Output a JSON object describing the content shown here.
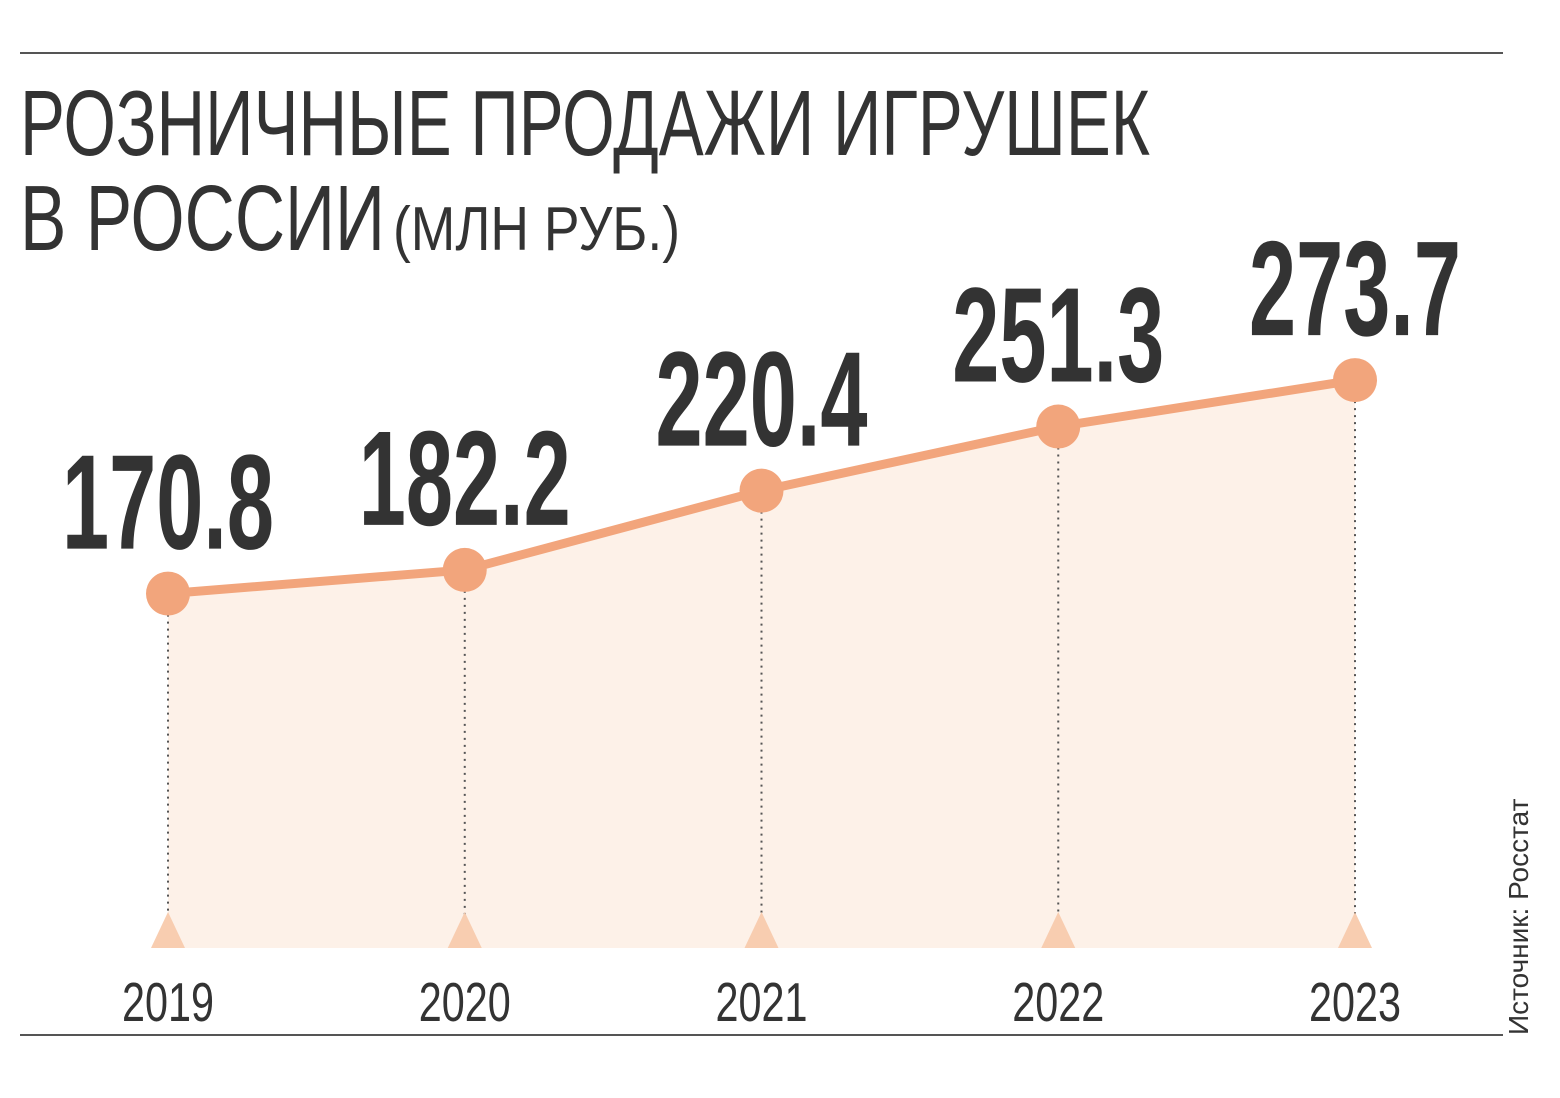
{
  "chart_data": {
    "type": "line",
    "title": [
      "РОЗНИЧНЫЕ ПРОДАЖИ ИГРУШЕК",
      "В РОССИИ"
    ],
    "subtitle": "(МЛН РУБ.)",
    "source": "Источник: Росстат",
    "categories": [
      "2019",
      "2020",
      "2021",
      "2022",
      "2023"
    ],
    "values": [
      170.8,
      182.2,
      220.4,
      251.3,
      273.7
    ],
    "color": "#f2a57c",
    "ylim": [
      0,
      300
    ]
  }
}
